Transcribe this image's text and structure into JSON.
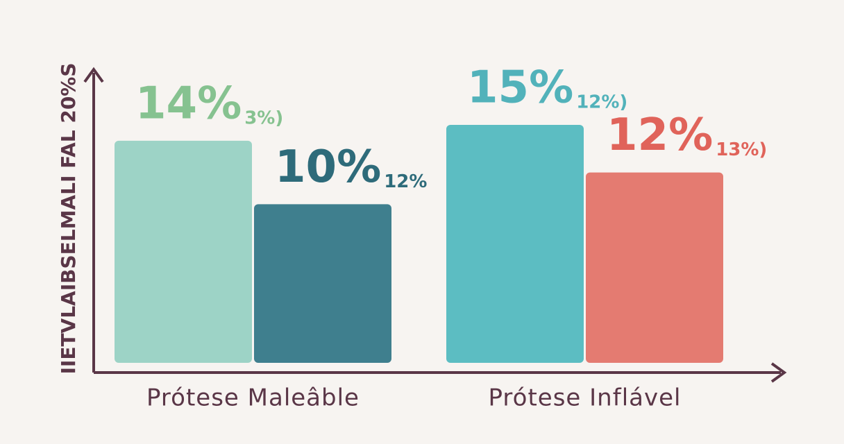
{
  "chart_data": {
    "type": "bar",
    "y_label": "IIETVLAIBSELMALI FAL 20%S",
    "categories": [
      "Prótese Maleâble",
      "Prótese Inflável"
    ],
    "series": [
      {
        "colors": [
          "#9dd3c6",
          "#5cbdc2"
        ],
        "label_colors": [
          "#86c290",
          "#52b2ba"
        ],
        "values": [
          14,
          15
        ],
        "value_labels": [
          "14%",
          "15%"
        ],
        "sub_labels": [
          "3%)",
          "12%)"
        ]
      },
      {
        "colors": [
          "#3f7f8e",
          "#e47b71"
        ],
        "label_colors": [
          "#2e6b7a",
          "#e0635a"
        ],
        "values": [
          10,
          12
        ],
        "value_labels": [
          "10%",
          "12%"
        ],
        "sub_labels": [
          "12%",
          "13%)"
        ]
      }
    ]
  }
}
